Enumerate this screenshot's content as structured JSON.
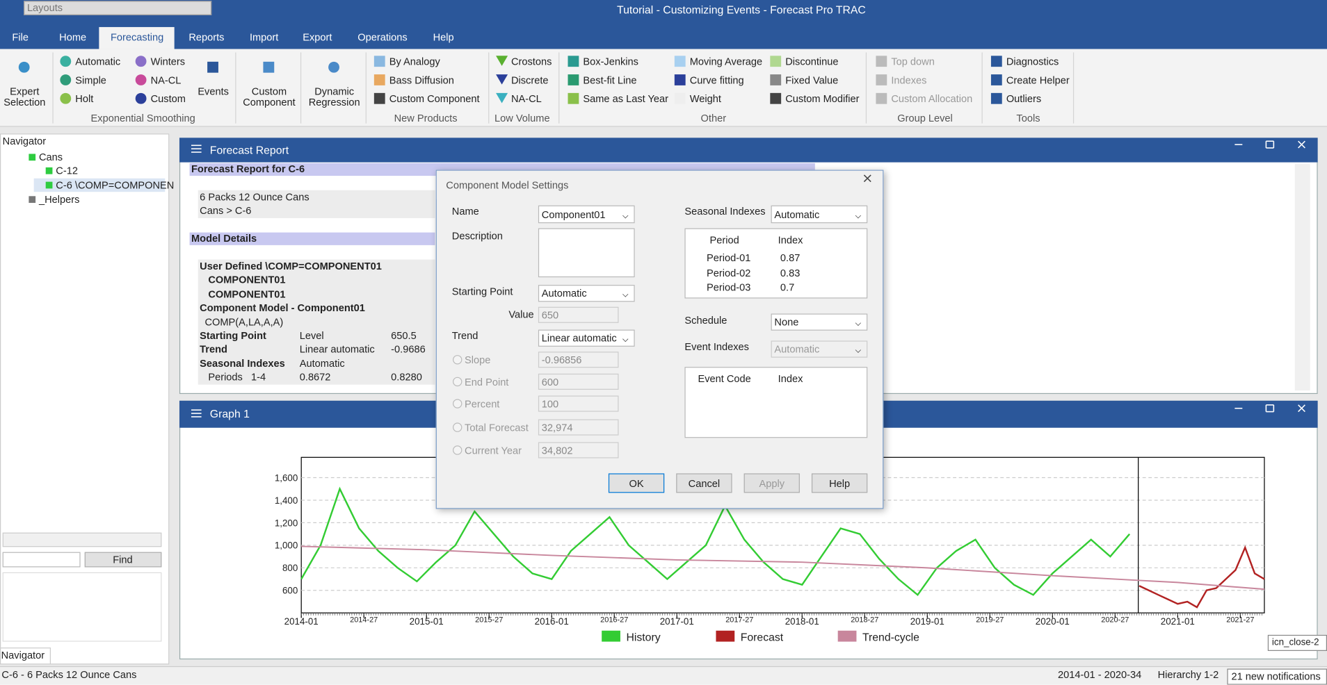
{
  "titlebar": {
    "layouts": "Layouts",
    "title": "Tutorial - Customizing Events - Forecast Pro TRAC"
  },
  "menu": [
    "File",
    "Home",
    "Forecasting",
    "Reports",
    "Import",
    "Export",
    "Operations",
    "Help"
  ],
  "ribbon": {
    "expert_selection": [
      "Expert",
      "Selection"
    ],
    "exponential_smoothing": {
      "items": [
        "Automatic",
        "Simple",
        "Holt",
        "Winters",
        "NA-CL",
        "Custom"
      ],
      "events": "Events",
      "label": "Exponential Smoothing"
    },
    "custom_component": [
      "Custom",
      "Component"
    ],
    "dynamic_regression": [
      "Dynamic",
      "Regression"
    ],
    "new_products": {
      "items": [
        "By Analogy",
        "Bass Diffusion",
        "Custom Component"
      ],
      "label": "New Products"
    },
    "low_volume": {
      "items": [
        "Crostons",
        "Discrete",
        "NA-CL"
      ],
      "label": "Low Volume"
    },
    "other": {
      "items": [
        "Box-Jenkins",
        "Best-fit Line",
        "Same as Last Year",
        "Moving Average",
        "Curve fitting",
        "Weight",
        "Discontinue",
        "Fixed Value",
        "Custom Modifier"
      ],
      "label": "Other"
    },
    "group_level": {
      "items": [
        "Top down",
        "Indexes",
        "Custom Allocation"
      ],
      "label": "Group Level"
    },
    "tools": {
      "items": [
        "Diagnostics",
        "Create Helper",
        "Outliers"
      ],
      "label": "Tools"
    }
  },
  "navigator": {
    "title": "Navigator",
    "tree": [
      "Cans",
      "C-12",
      "C-6 \\COMP=COMPONEN",
      "_Helpers"
    ],
    "find": "Find",
    "tab": "Navigator"
  },
  "report": {
    "window_title": "Forecast Report",
    "heading": "Forecast Report for C-6",
    "item": [
      "6 Packs 12 Ounce Cans",
      "Cans > C-6"
    ],
    "model_heading": "Model Details",
    "rows": [
      [
        "User Defined \\COMP=COMPONENT01"
      ],
      [
        "COMPONENT01"
      ],
      [
        "COMPONENT01"
      ],
      [
        "Component Model - Component01"
      ],
      [
        "COMP(A,LA,A,A)"
      ],
      [
        "Starting Point",
        "Level",
        650.5
      ],
      [
        "Trend",
        "Linear automatic",
        -0.9686
      ],
      [
        "Seasonal Indexes",
        "Automatic"
      ],
      [
        "Periods   1-4",
        0.8672,
        "0.8280"
      ]
    ]
  },
  "dialog": {
    "title": "Component Model Settings",
    "name_label": "Name",
    "name": "Component01",
    "description_label": "Description",
    "starting_point_label": "Starting Point",
    "starting_point": "Automatic",
    "value_label": "Value",
    "value": 650,
    "trend_label": "Trend",
    "trend": "Linear automatic",
    "options": [
      [
        "Slope",
        -0.96856
      ],
      [
        "End Point",
        600
      ],
      [
        "Percent",
        100
      ],
      [
        "Total Forecast",
        "32,974"
      ],
      [
        "Current Year",
        "34,802"
      ]
    ],
    "seasonal_label": "Seasonal Indexes",
    "seasonal": "Automatic",
    "index_table": {
      "headers": [
        "Period",
        "Index"
      ],
      "rows": [
        [
          "Period-01",
          0.87
        ],
        [
          "Period-02",
          0.83
        ],
        [
          "Period-03",
          0.7
        ]
      ]
    },
    "schedule_label": "Schedule",
    "schedule": "None",
    "event_indexes_label": "Event Indexes",
    "event_indexes": "Automatic",
    "event_table": {
      "headers": [
        "Event Code",
        "Index"
      ]
    },
    "buttons": [
      "OK",
      "Cancel",
      "Apply",
      "Help"
    ]
  },
  "graph_window": {
    "title": "Graph 1"
  },
  "chart_data": {
    "type": "line",
    "xlim": [
      0,
      400
    ],
    "ylim": [
      400,
      1780
    ],
    "xticks": [
      {
        "value": 0,
        "label": "2014-01"
      },
      {
        "value": 26,
        "label": "2014-27"
      },
      {
        "value": 52,
        "label": "2015-01"
      },
      {
        "value": 78,
        "label": "2015-27"
      },
      {
        "value": 104,
        "label": "2016-01"
      },
      {
        "value": 130,
        "label": "2016-27"
      },
      {
        "value": 156,
        "label": "2017-01"
      },
      {
        "value": 182,
        "label": "2017-27"
      },
      {
        "value": 208,
        "label": "2018-01"
      },
      {
        "value": 234,
        "label": "2018-27"
      },
      {
        "value": 260,
        "label": "2019-01"
      },
      {
        "value": 286,
        "label": "2019-27"
      },
      {
        "value": 312,
        "label": "2020-01"
      },
      {
        "value": 338,
        "label": "2020-27"
      },
      {
        "value": 364,
        "label": "2021-01"
      },
      {
        "value": 390,
        "label": "2021-27"
      }
    ],
    "yticks": [
      600,
      800,
      {
        "value": 1000,
        "label": "1,000"
      },
      {
        "value": 1200,
        "label": "1,200"
      },
      {
        "value": 1400,
        "label": "1,400"
      },
      {
        "value": 1600,
        "label": "1,600"
      }
    ],
    "grid": true,
    "series": [
      {
        "name": "History",
        "color": "#33cc33",
        "x": [
          0,
          8,
          16,
          24,
          32,
          40,
          48,
          56,
          64,
          72,
          80,
          88,
          96,
          104,
          112,
          120,
          128,
          136,
          144,
          152,
          160,
          168,
          176,
          184,
          192,
          200,
          208,
          216,
          224,
          232,
          240,
          248,
          256,
          264,
          272,
          280,
          288,
          296,
          304,
          312,
          320,
          328,
          336,
          344
        ],
        "values": [
          700,
          1000,
          1500,
          1150,
          950,
          800,
          680,
          850,
          1000,
          1300,
          1100,
          900,
          750,
          700,
          950,
          1100,
          1250,
          1000,
          850,
          700,
          850,
          1000,
          1350,
          1050,
          850,
          700,
          650,
          900,
          1150,
          1100,
          880,
          700,
          560,
          800,
          950,
          1050,
          800,
          650,
          560,
          750,
          900,
          1050,
          900,
          1100
        ]
      },
      {
        "name": "Forecast",
        "color": "#b22222",
        "x": [
          348,
          352,
          356,
          360,
          364,
          368,
          372,
          376,
          380,
          384,
          388,
          392,
          396,
          400
        ],
        "values": [
          640,
          600,
          560,
          520,
          480,
          500,
          450,
          600,
          620,
          700,
          780,
          980,
          750,
          700
        ]
      },
      {
        "name": "Trend-cycle",
        "color": "#c8869c",
        "x": [
          0,
          52,
          104,
          156,
          208,
          260,
          312,
          364,
          400
        ],
        "values": [
          990,
          960,
          910,
          870,
          850,
          800,
          730,
          670,
          610
        ]
      }
    ]
  },
  "status": {
    "item": "C-6 - 6 Packs 12 Ounce Cans",
    "range": "2014-01 - 2020-34",
    "hierarchy": "Hierarchy 1-2",
    "notifications": "21 new notifications",
    "tooltip": "icn_close-2"
  }
}
